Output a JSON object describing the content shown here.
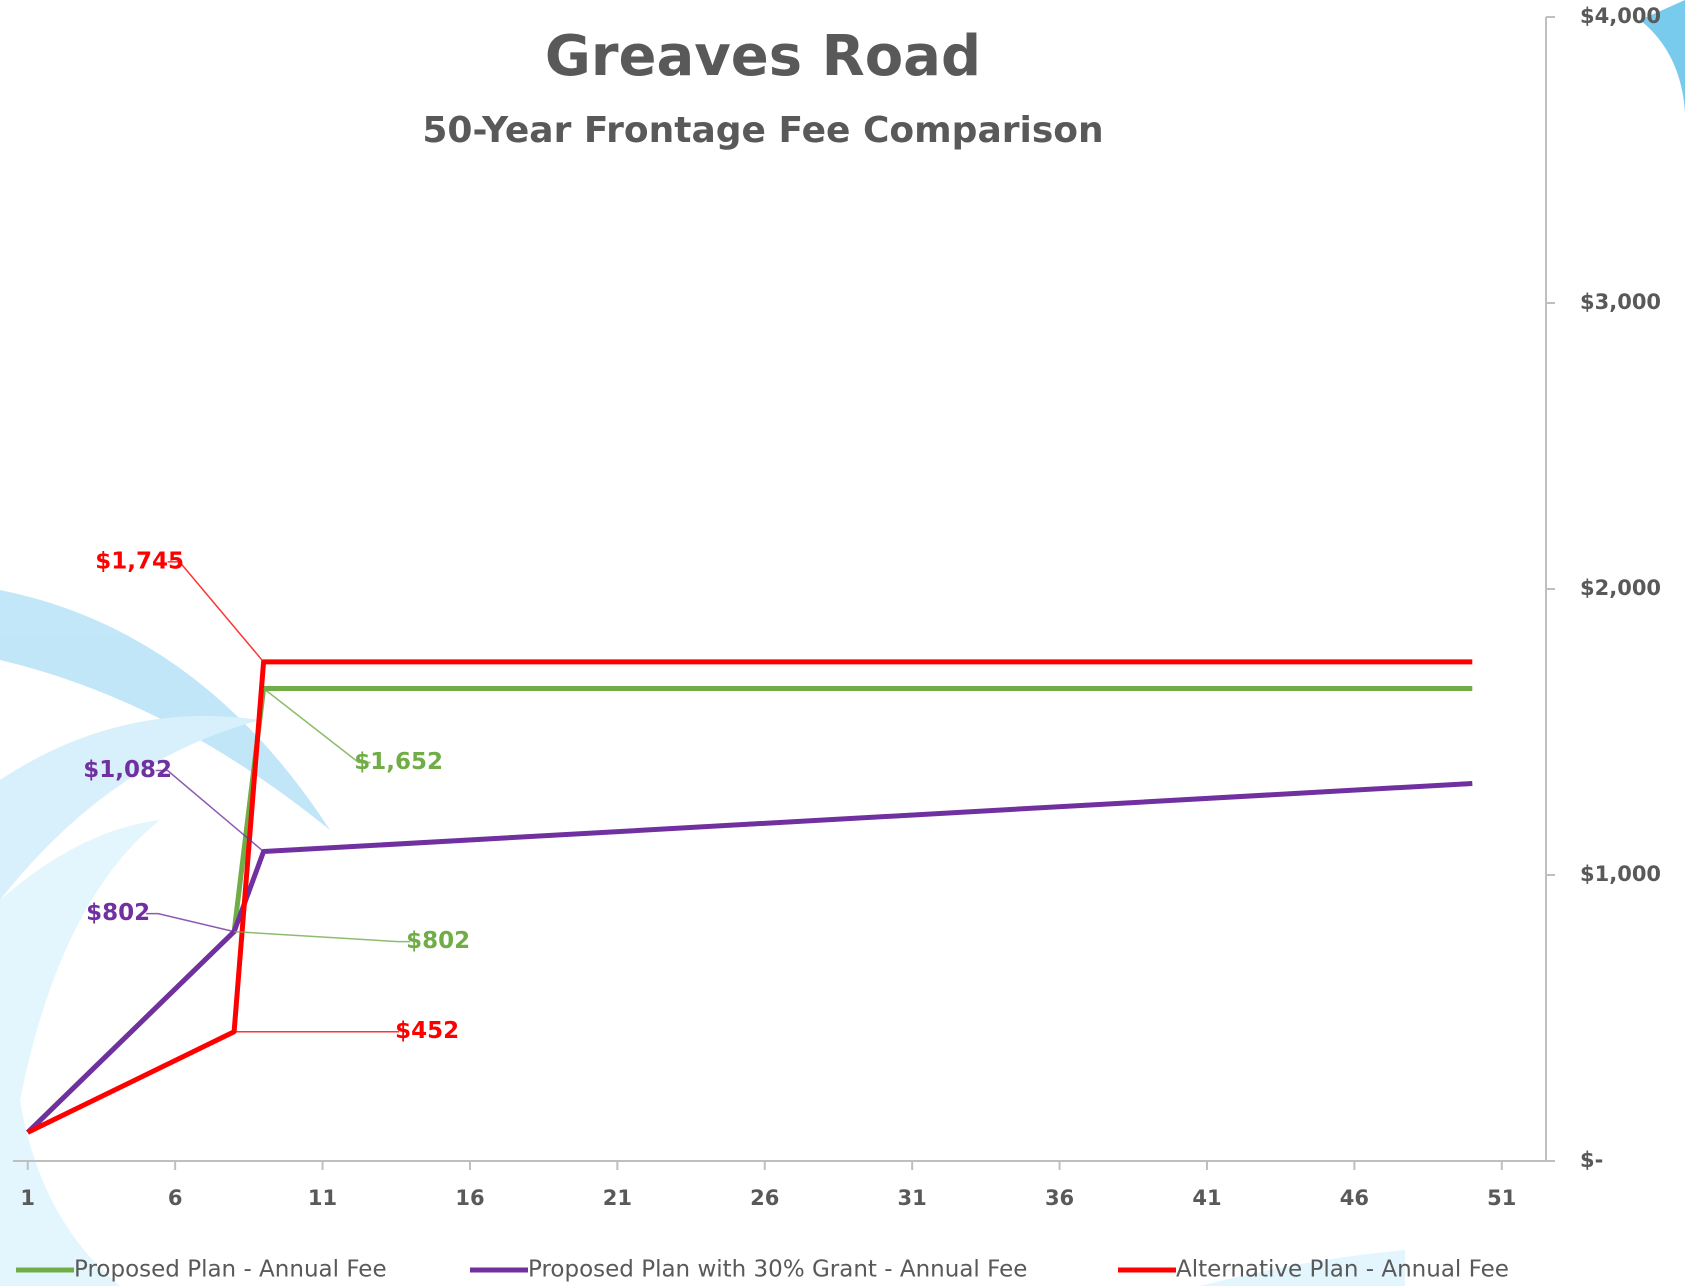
{
  "chart_data": {
    "type": "line",
    "title": "Greaves Road",
    "subtitle": "50-Year Frontage Fee Comparison",
    "x": [
      1,
      8,
      9,
      50
    ],
    "series": [
      {
        "name": "Proposed Plan - Annual Fee",
        "color": "#70ad47",
        "values": [
          100,
          802,
          1652,
          1652
        ],
        "value_labels": [
          null,
          "$802",
          "$1,652",
          null
        ]
      },
      {
        "name": "Proposed Plan with 30% Grant - Annual Fee",
        "color": "#7030a0",
        "values": [
          100,
          802,
          1082,
          1320
        ],
        "value_labels": [
          null,
          "$802",
          "$1,082",
          null
        ]
      },
      {
        "name": "Alternative Plan - Annual Fee",
        "color": "#ff0000",
        "values": [
          100,
          452,
          1745,
          1745
        ],
        "value_labels": [
          null,
          "$452",
          "$1,745",
          null
        ]
      }
    ],
    "xlim": [
      0.5,
      52.5
    ],
    "xticks": [
      1,
      6,
      11,
      16,
      21,
      26,
      31,
      36,
      41,
      46,
      51
    ],
    "ylim": [
      0,
      4000
    ],
    "yticks": [
      {
        "value": 0,
        "label": "$-"
      },
      {
        "value": 1000,
        "label": "$1,000"
      },
      {
        "value": 2000,
        "label": "$2,000"
      },
      {
        "value": 3000,
        "label": "$3,000"
      },
      {
        "value": 4000,
        "label": "$4,000"
      }
    ],
    "grid": false
  }
}
